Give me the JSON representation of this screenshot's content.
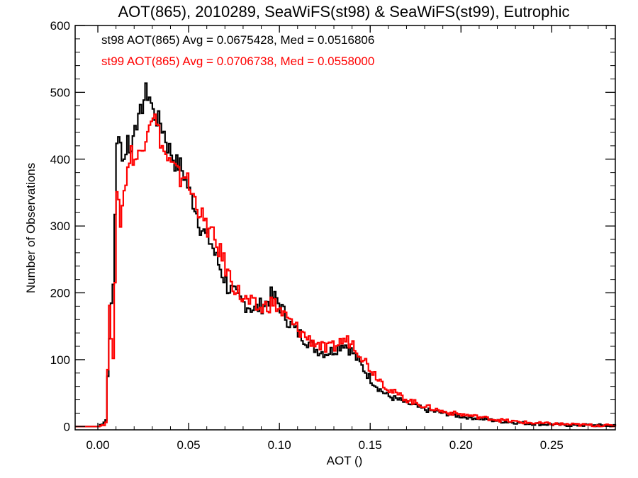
{
  "chart_data": {
    "type": "line",
    "title": "AOT(865), 2010289, SeaWiFS(st98) & SeaWiFS(st99), Eutrophic",
    "xlabel": "AOT ()",
    "ylabel": "Number of Observations",
    "xlim": [
      -0.0125,
      0.285
    ],
    "ylim": [
      -5,
      600
    ],
    "xticks": [
      0.0,
      0.05,
      0.1,
      0.15,
      0.2,
      0.25
    ],
    "xtick_labels": [
      "0.00",
      "0.05",
      "0.10",
      "0.15",
      "0.20",
      "0.25"
    ],
    "yticks": [
      0,
      100,
      200,
      300,
      400,
      500,
      600
    ],
    "ytick_labels": [
      "0",
      "100",
      "200",
      "300",
      "400",
      "500",
      "600"
    ],
    "grid": false,
    "legend_position": "top-left",
    "series": [
      {
        "name": "st98 AOT(865) Avg = 0.0675428, Med = 0.0516806",
        "color": "#000000",
        "x": [
          0.0,
          0.004,
          0.006,
          0.008,
          0.01,
          0.012,
          0.014,
          0.016,
          0.018,
          0.02,
          0.022,
          0.024,
          0.026,
          0.028,
          0.03,
          0.032,
          0.034,
          0.036,
          0.038,
          0.04,
          0.042,
          0.045,
          0.048,
          0.05,
          0.053,
          0.056,
          0.059,
          0.062,
          0.065,
          0.068,
          0.071,
          0.074,
          0.077,
          0.08,
          0.083,
          0.086,
          0.089,
          0.092,
          0.095,
          0.098,
          0.101,
          0.104,
          0.108,
          0.112,
          0.116,
          0.12,
          0.125,
          0.13,
          0.135,
          0.14,
          0.145,
          0.15,
          0.155,
          0.16,
          0.17,
          0.18,
          0.19,
          0.2,
          0.21,
          0.22,
          0.23,
          0.24,
          0.25,
          0.26,
          0.27,
          0.285
        ],
        "y": [
          0,
          10,
          140,
          210,
          430,
          420,
          400,
          430,
          410,
          460,
          455,
          480,
          500,
          495,
          470,
          460,
          455,
          440,
          420,
          410,
          395,
          390,
          370,
          350,
          330,
          300,
          285,
          275,
          250,
          230,
          210,
          200,
          190,
          185,
          180,
          175,
          180,
          185,
          195,
          190,
          175,
          160,
          145,
          135,
          125,
          115,
          110,
          115,
          125,
          110,
          90,
          70,
          55,
          45,
          35,
          25,
          20,
          15,
          12,
          8,
          6,
          4,
          3,
          2,
          2,
          1
        ]
      },
      {
        "name": "st99 AOT(865) Avg = 0.0706738, Med = 0.0558000",
        "color": "#ff0000",
        "x": [
          0.0,
          0.004,
          0.006,
          0.008,
          0.01,
          0.012,
          0.014,
          0.016,
          0.018,
          0.02,
          0.022,
          0.024,
          0.026,
          0.028,
          0.03,
          0.032,
          0.034,
          0.036,
          0.038,
          0.04,
          0.042,
          0.045,
          0.048,
          0.05,
          0.053,
          0.056,
          0.059,
          0.062,
          0.065,
          0.068,
          0.071,
          0.074,
          0.077,
          0.08,
          0.083,
          0.086,
          0.089,
          0.092,
          0.095,
          0.098,
          0.101,
          0.104,
          0.108,
          0.112,
          0.116,
          0.12,
          0.125,
          0.13,
          0.135,
          0.14,
          0.145,
          0.15,
          0.155,
          0.16,
          0.17,
          0.18,
          0.19,
          0.2,
          0.21,
          0.22,
          0.23,
          0.24,
          0.25,
          0.26,
          0.27,
          0.285
        ],
        "y": [
          0,
          5,
          170,
          110,
          340,
          310,
          350,
          390,
          410,
          400,
          405,
          415,
          440,
          460,
          470,
          450,
          430,
          410,
          400,
          390,
          385,
          370,
          380,
          355,
          340,
          320,
          300,
          290,
          270,
          255,
          230,
          215,
          200,
          190,
          185,
          180,
          175,
          180,
          185,
          180,
          170,
          160,
          150,
          140,
          130,
          125,
          115,
          120,
          130,
          125,
          105,
          85,
          70,
          55,
          40,
          30,
          22,
          18,
          14,
          10,
          7,
          5,
          4,
          3,
          2,
          1
        ]
      }
    ]
  }
}
